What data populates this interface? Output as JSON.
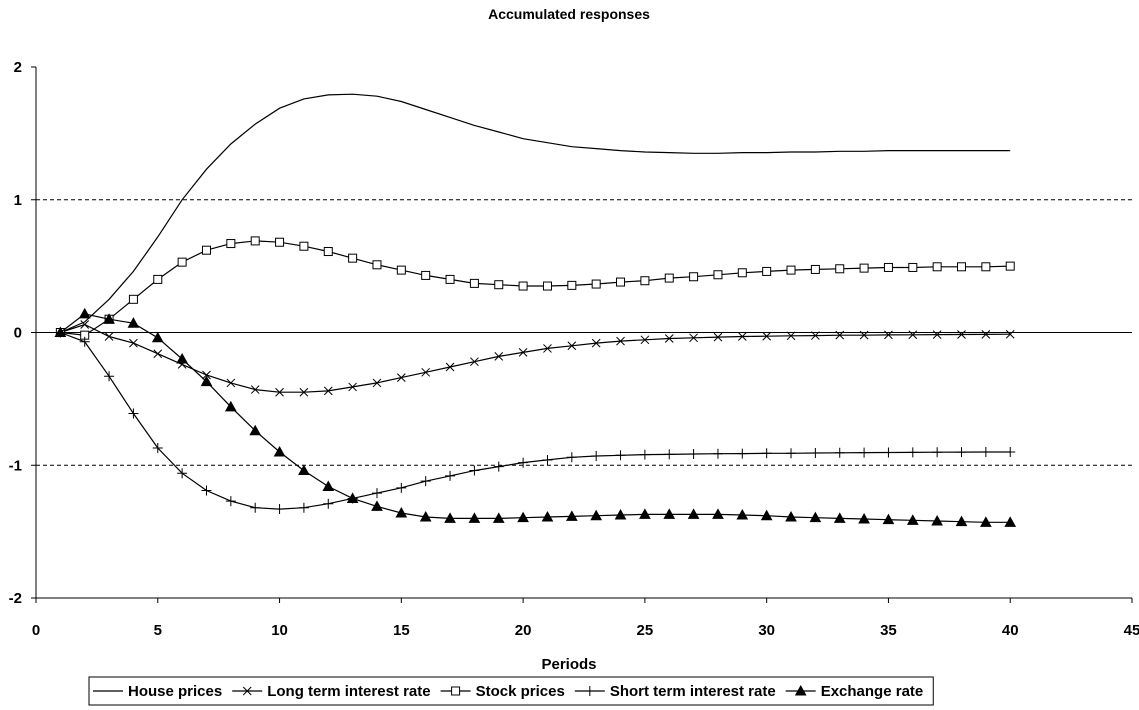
{
  "chart_data": {
    "type": "line",
    "title": "Accumulated responses",
    "xlabel": "Periods",
    "ylabel": "",
    "xlim": [
      0,
      45
    ],
    "ylim": [
      -2,
      2
    ],
    "xticks": [
      "0",
      "5",
      "10",
      "15",
      "20",
      "25",
      "30",
      "35",
      "40",
      "45"
    ],
    "yticks": [
      "2",
      "1",
      "0",
      "-1",
      "-2"
    ],
    "dashed_gridlines_at": [
      1,
      -1
    ],
    "legend_position": "bottom",
    "x": [
      1,
      2,
      3,
      4,
      5,
      6,
      7,
      8,
      9,
      10,
      11,
      12,
      13,
      14,
      15,
      16,
      17,
      18,
      19,
      20,
      21,
      22,
      23,
      24,
      25,
      26,
      27,
      28,
      29,
      30,
      31,
      32,
      33,
      34,
      35,
      36,
      37,
      38,
      39,
      40
    ],
    "series": [
      {
        "name": "House prices",
        "marker": "none",
        "values": [
          0,
          0.08,
          0.25,
          0.46,
          0.72,
          1.0,
          1.23,
          1.42,
          1.57,
          1.69,
          1.76,
          1.79,
          1.795,
          1.78,
          1.74,
          1.68,
          1.62,
          1.56,
          1.51,
          1.46,
          1.43,
          1.4,
          1.385,
          1.37,
          1.36,
          1.355,
          1.35,
          1.35,
          1.355,
          1.355,
          1.36,
          1.36,
          1.365,
          1.365,
          1.37,
          1.37,
          1.37,
          1.37,
          1.37,
          1.37
        ]
      },
      {
        "name": "Long term interest rate",
        "marker": "x",
        "values": [
          0,
          0.06,
          -0.03,
          -0.08,
          -0.16,
          -0.24,
          -0.32,
          -0.38,
          -0.43,
          -0.45,
          -0.45,
          -0.44,
          -0.41,
          -0.38,
          -0.34,
          -0.3,
          -0.26,
          -0.22,
          -0.18,
          -0.15,
          -0.12,
          -0.1,
          -0.08,
          -0.065,
          -0.055,
          -0.045,
          -0.04,
          -0.035,
          -0.03,
          -0.028,
          -0.025,
          -0.023,
          -0.02,
          -0.02,
          -0.018,
          -0.017,
          -0.016,
          -0.015,
          -0.014,
          -0.013
        ]
      },
      {
        "name": "Stock prices",
        "marker": "square",
        "values": [
          0,
          -0.02,
          0.1,
          0.25,
          0.4,
          0.53,
          0.62,
          0.67,
          0.69,
          0.68,
          0.65,
          0.61,
          0.56,
          0.51,
          0.47,
          0.43,
          0.4,
          0.37,
          0.36,
          0.35,
          0.35,
          0.355,
          0.365,
          0.38,
          0.39,
          0.41,
          0.42,
          0.435,
          0.45,
          0.46,
          0.47,
          0.475,
          0.48,
          0.485,
          0.49,
          0.49,
          0.495,
          0.495,
          0.495,
          0.5
        ]
      },
      {
        "name": "Short term interest rate",
        "marker": "plus",
        "values": [
          0,
          -0.07,
          -0.33,
          -0.61,
          -0.87,
          -1.06,
          -1.19,
          -1.27,
          -1.32,
          -1.33,
          -1.32,
          -1.29,
          -1.25,
          -1.21,
          -1.17,
          -1.12,
          -1.08,
          -1.04,
          -1.01,
          -0.98,
          -0.96,
          -0.94,
          -0.93,
          -0.925,
          -0.92,
          -0.918,
          -0.915,
          -0.913,
          -0.912,
          -0.91,
          -0.91,
          -0.908,
          -0.906,
          -0.905,
          -0.904,
          -0.903,
          -0.902,
          -0.901,
          -0.9,
          -0.9
        ]
      },
      {
        "name": "Exchange rate",
        "marker": "triangle",
        "values": [
          0,
          0.14,
          0.1,
          0.07,
          -0.04,
          -0.2,
          -0.37,
          -0.56,
          -0.74,
          -0.9,
          -1.04,
          -1.16,
          -1.25,
          -1.31,
          -1.36,
          -1.39,
          -1.4,
          -1.4,
          -1.4,
          -1.395,
          -1.39,
          -1.385,
          -1.38,
          -1.375,
          -1.37,
          -1.37,
          -1.37,
          -1.37,
          -1.375,
          -1.38,
          -1.39,
          -1.395,
          -1.4,
          -1.405,
          -1.41,
          -1.415,
          -1.42,
          -1.425,
          -1.43,
          -1.43
        ]
      }
    ]
  }
}
